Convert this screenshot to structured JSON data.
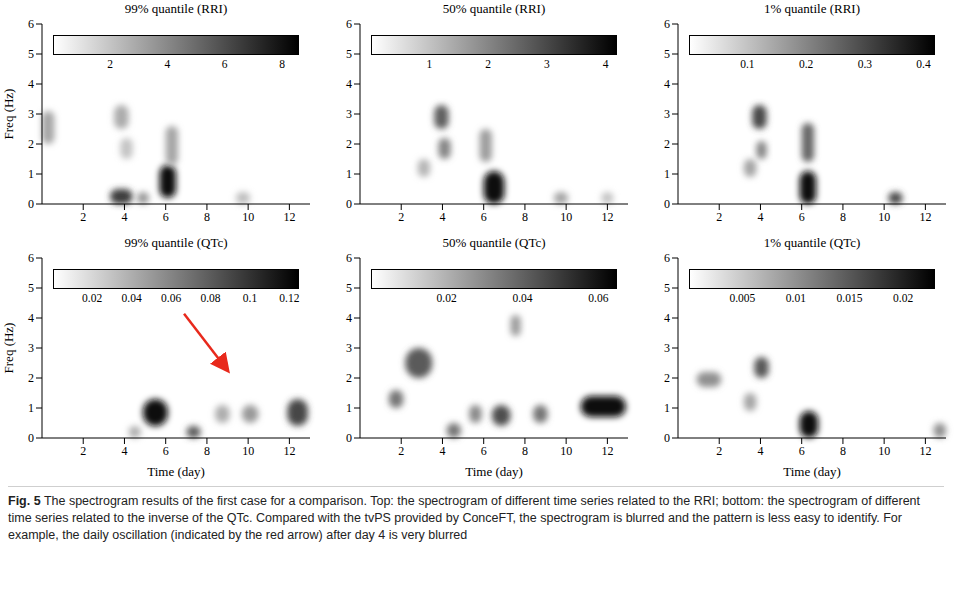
{
  "caption": {
    "label": "Fig. 5",
    "text": "The spectrogram results of the first case for a comparison. Top: the spectrogram of different time series related to the RRI; bottom: the spectrogram of different time series related to the inverse of the QTc. Compared with the tvPS provided by ConceFT, the spectrogram is blurred and the pattern is less easy to identify. For example, the daily oscillation (indicated by the red arrow) after day 4 is very blurred"
  },
  "chart_data": [
    {
      "type": "heatmap",
      "title": "99% quantile (RRI)",
      "y_label": "Freq (Hz)",
      "xlim": [
        0,
        13
      ],
      "xticks": [
        2,
        4,
        6,
        8,
        10,
        12
      ],
      "ylim": [
        0,
        6
      ],
      "yticks": [
        0,
        1,
        2,
        3,
        4,
        5,
        6
      ],
      "colorbar": {
        "range": [
          0,
          8.6
        ],
        "ticks": [
          2,
          4,
          6,
          8
        ]
      },
      "cells": [
        {
          "x": [
            3.3,
            4.4
          ],
          "y": [
            0,
            0.5
          ],
          "value": 6.5
        },
        {
          "x": [
            5.7,
            6.5
          ],
          "y": [
            0.2,
            1.3
          ],
          "value": 8.2
        },
        {
          "x": [
            4.6,
            5.2
          ],
          "y": [
            0,
            0.4
          ],
          "value": 3.5
        },
        {
          "x": [
            0,
            0.6
          ],
          "y": [
            2,
            3.1
          ],
          "value": 3
        },
        {
          "x": [
            3.5,
            4.2
          ],
          "y": [
            2.5,
            3.3
          ],
          "value": 2.8
        },
        {
          "x": [
            6,
            6.6
          ],
          "y": [
            1.3,
            2.6
          ],
          "value": 3
        },
        {
          "x": [
            9.4,
            10.1
          ],
          "y": [
            0,
            0.4
          ],
          "value": 2.2
        },
        {
          "x": [
            3.8,
            4.4
          ],
          "y": [
            1.5,
            2.2
          ],
          "value": 2
        }
      ]
    },
    {
      "type": "heatmap",
      "title": "50% quantile (RRI)",
      "xlim": [
        0,
        13
      ],
      "xticks": [
        2,
        4,
        6,
        8,
        10,
        12
      ],
      "ylim": [
        0,
        6
      ],
      "yticks": [
        0,
        1,
        2,
        3,
        4,
        5,
        6
      ],
      "colorbar": {
        "range": [
          0,
          4.2
        ],
        "ticks": [
          1,
          2,
          3,
          4
        ]
      },
      "cells": [
        {
          "x": [
            6,
            7
          ],
          "y": [
            0,
            1.1
          ],
          "value": 4
        },
        {
          "x": [
            3.6,
            4.3
          ],
          "y": [
            2.5,
            3.3
          ],
          "value": 2.6
        },
        {
          "x": [
            3.8,
            4.4
          ],
          "y": [
            1.5,
            2.2
          ],
          "value": 2
        },
        {
          "x": [
            5.8,
            6.4
          ],
          "y": [
            1.4,
            2.5
          ],
          "value": 1.6
        },
        {
          "x": [
            9.4,
            10.1
          ],
          "y": [
            0,
            0.4
          ],
          "value": 1.5
        },
        {
          "x": [
            11.7,
            12.3
          ],
          "y": [
            0,
            0.4
          ],
          "value": 1
        },
        {
          "x": [
            2.8,
            3.4
          ],
          "y": [
            0.9,
            1.5
          ],
          "value": 1.2
        }
      ]
    },
    {
      "type": "heatmap",
      "title": "1% quantile (RRI)",
      "xlim": [
        0,
        13
      ],
      "xticks": [
        2,
        4,
        6,
        8,
        10,
        12
      ],
      "ylim": [
        0,
        6
      ],
      "yticks": [
        0,
        1,
        2,
        3,
        4,
        5,
        6
      ],
      "colorbar": {
        "range": [
          0,
          0.42
        ],
        "ticks": [
          0.1,
          0.2,
          0.3,
          0.4
        ]
      },
      "cells": [
        {
          "x": [
            5.9,
            6.7
          ],
          "y": [
            0,
            1.1
          ],
          "value": 0.4
        },
        {
          "x": [
            3.6,
            4.3
          ],
          "y": [
            2.5,
            3.3
          ],
          "value": 0.3
        },
        {
          "x": [
            6,
            6.6
          ],
          "y": [
            1.4,
            2.7
          ],
          "value": 0.25
        },
        {
          "x": [
            10.2,
            10.9
          ],
          "y": [
            0,
            0.4
          ],
          "value": 0.3
        },
        {
          "x": [
            3.2,
            3.8
          ],
          "y": [
            0.9,
            1.5
          ],
          "value": 0.15
        },
        {
          "x": [
            3.8,
            4.3
          ],
          "y": [
            1.5,
            2.1
          ],
          "value": 0.2
        }
      ]
    },
    {
      "type": "heatmap",
      "title": "99% quantile (QTc)",
      "x_label": "Time (day)",
      "y_label": "Freq (Hz)",
      "xlim": [
        0,
        13
      ],
      "xticks": [
        2,
        4,
        6,
        8,
        10,
        12
      ],
      "ylim": [
        0,
        6
      ],
      "yticks": [
        0,
        1,
        2,
        3,
        4,
        5,
        6
      ],
      "colorbar": {
        "range": [
          0,
          0.125
        ],
        "ticks": [
          0.02,
          0.04,
          0.06,
          0.08,
          0.1,
          0.12
        ]
      },
      "cells": [
        {
          "x": [
            4.9,
            6.1
          ],
          "y": [
            0.4,
            1.3
          ],
          "value": 0.12
        },
        {
          "x": [
            7,
            7.7
          ],
          "y": [
            0,
            0.4
          ],
          "value": 0.08
        },
        {
          "x": [
            11.9,
            12.9
          ],
          "y": [
            0.4,
            1.3
          ],
          "value": 0.09
        },
        {
          "x": [
            9.7,
            10.5
          ],
          "y": [
            0.5,
            1.1
          ],
          "value": 0.05
        },
        {
          "x": [
            8.4,
            9.1
          ],
          "y": [
            0.5,
            1.1
          ],
          "value": 0.04
        },
        {
          "x": [
            4.2,
            4.8
          ],
          "y": [
            0,
            0.4
          ],
          "value": 0.04
        }
      ]
    },
    {
      "type": "heatmap",
      "title": "50% quantile (QTc)",
      "x_label": "Time (day)",
      "xlim": [
        0,
        13
      ],
      "xticks": [
        2,
        4,
        6,
        8,
        10,
        12
      ],
      "ylim": [
        0,
        6
      ],
      "yticks": [
        0,
        1,
        2,
        3,
        4,
        5,
        6
      ],
      "colorbar": {
        "range": [
          0,
          0.065
        ],
        "ticks": [
          0.02,
          0.04,
          0.06
        ]
      },
      "cells": [
        {
          "x": [
            10.7,
            12.9
          ],
          "y": [
            0.7,
            1.4
          ],
          "value": 0.062
        },
        {
          "x": [
            2.2,
            3.5
          ],
          "y": [
            2,
            3
          ],
          "value": 0.042
        },
        {
          "x": [
            1.4,
            2.1
          ],
          "y": [
            1,
            1.6
          ],
          "value": 0.035
        },
        {
          "x": [
            6.4,
            7.3
          ],
          "y": [
            0.4,
            1.1
          ],
          "value": 0.045
        },
        {
          "x": [
            8.4,
            9.1
          ],
          "y": [
            0.5,
            1.1
          ],
          "value": 0.035
        },
        {
          "x": [
            4.2,
            4.9
          ],
          "y": [
            0,
            0.5
          ],
          "value": 0.035
        },
        {
          "x": [
            5.3,
            5.9
          ],
          "y": [
            0.5,
            1.1
          ],
          "value": 0.03
        },
        {
          "x": [
            7.3,
            7.8
          ],
          "y": [
            3.4,
            4.1
          ],
          "value": 0.025
        }
      ]
    },
    {
      "type": "heatmap",
      "title": "1% quantile (QTc)",
      "x_label": "Time (day)",
      "xlim": [
        0,
        13
      ],
      "xticks": [
        2,
        4,
        6,
        8,
        10,
        12
      ],
      "ylim": [
        0,
        6
      ],
      "yticks": [
        0,
        1,
        2,
        3,
        4,
        5,
        6
      ],
      "colorbar": {
        "range": [
          0,
          0.023
        ],
        "ticks": [
          0.005,
          0.01,
          0.015,
          0.02
        ]
      },
      "cells": [
        {
          "x": [
            5.9,
            6.8
          ],
          "y": [
            0,
            0.9
          ],
          "value": 0.022
        },
        {
          "x": [
            3.7,
            4.4
          ],
          "y": [
            2,
            2.7
          ],
          "value": 0.015
        },
        {
          "x": [
            0.9,
            2.1
          ],
          "y": [
            1.7,
            2.2
          ],
          "value": 0.01
        },
        {
          "x": [
            12.4,
            13
          ],
          "y": [
            0,
            0.5
          ],
          "value": 0.01
        },
        {
          "x": [
            3.2,
            3.8
          ],
          "y": [
            0.9,
            1.5
          ],
          "value": 0.008
        }
      ]
    }
  ]
}
